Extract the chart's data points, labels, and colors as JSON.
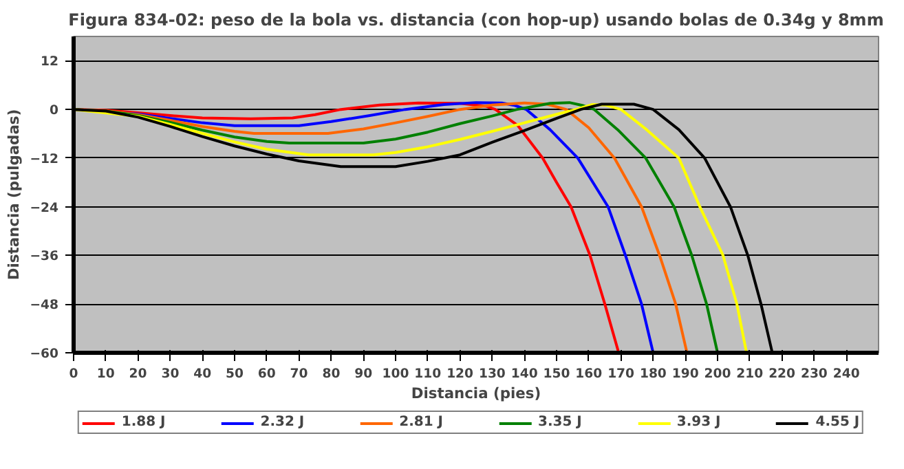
{
  "chart_data": {
    "type": "line",
    "title": "Figura 834-02: peso de la bola vs. distancia (con hop-up) usando bolas de 0.34g y 8mm",
    "xlabel": "Distancia (pies)",
    "ylabel": "Distancia (pulgadas)",
    "xlim": [
      0,
      250
    ],
    "ylim": [
      -60,
      18
    ],
    "xticks": [
      0,
      10,
      20,
      30,
      40,
      50,
      60,
      70,
      80,
      90,
      100,
      110,
      120,
      130,
      140,
      150,
      160,
      170,
      180,
      190,
      200,
      210,
      220,
      230,
      240
    ],
    "yticks": [
      -60,
      -48,
      -36,
      -24,
      -12,
      0,
      12
    ],
    "grid": "y",
    "legend": "bottom",
    "line_style": "solid",
    "marker": "none",
    "series": [
      {
        "name": "1.88 J",
        "color": "#ff0000",
        "x": [
          0,
          10,
          20,
          30,
          40,
          55,
          68,
          75,
          83,
          95,
          107,
          120,
          128,
          131,
          138,
          145.7,
          150,
          154.5,
          160.4,
          165,
          169.3
        ],
        "values": [
          0,
          -0.2,
          -0.8,
          -1.5,
          -2.1,
          -2.3,
          -2.1,
          -1.3,
          0,
          1.1,
          1.6,
          1.5,
          0.8,
          0,
          -4,
          -12,
          -18,
          -24,
          -36,
          -48,
          -60
        ]
      },
      {
        "name": "2.32 J",
        "color": "#0000ff",
        "x": [
          0,
          20,
          30,
          40,
          50,
          70,
          80,
          92,
          103,
          115,
          125,
          133,
          137,
          140.6,
          148,
          156.6,
          166,
          171.4,
          176.4,
          180
        ],
        "values": [
          0,
          -1.1,
          -2.2,
          -3.3,
          -4,
          -4,
          -3,
          -1.5,
          0,
          1.2,
          1.7,
          1.6,
          1,
          0,
          -5,
          -12,
          -24,
          -36,
          -48,
          -60
        ]
      },
      {
        "name": "2.81 J",
        "color": "#ff6600",
        "x": [
          0,
          10,
          20,
          30,
          40,
          50,
          56,
          79,
          90,
          100,
          110,
          120,
          130,
          140,
          147,
          153,
          160,
          168,
          176.4,
          182,
          187,
          190.5
        ],
        "values": [
          0,
          -0.3,
          -1.3,
          -2.7,
          -4.2,
          -5.4,
          -5.9,
          -5.9,
          -4.8,
          -3.3,
          -1.7,
          0,
          1.1,
          1.6,
          1.3,
          0,
          -4.5,
          -12,
          -24,
          -36,
          -48,
          -60
        ]
      },
      {
        "name": "3.35 J",
        "color": "#008000",
        "x": [
          0,
          10,
          20,
          30,
          40,
          50,
          60,
          67,
          90,
          100,
          110,
          120,
          130,
          137.7,
          148,
          154,
          158,
          161.7,
          169,
          177.7,
          186.5,
          192,
          196.6,
          200
        ],
        "values": [
          0,
          -0.4,
          -1.5,
          -3.2,
          -5.1,
          -6.8,
          -7.9,
          -8.3,
          -8.3,
          -7.3,
          -5.6,
          -3.5,
          -1.6,
          0,
          1.5,
          1.7,
          1,
          0,
          -5,
          -12,
          -24,
          -36,
          -48,
          -60
        ]
      },
      {
        "name": "3.93 J",
        "color": "#ffff00",
        "x": [
          0,
          20,
          30,
          40,
          50,
          60,
          73,
          93,
          100,
          110,
          120,
          130,
          140,
          150,
          156,
          161,
          165,
          170,
          178,
          188,
          194.5,
          201.7,
          206,
          209
        ],
        "values": [
          0,
          -1.7,
          -3.7,
          -5.9,
          -8,
          -9.8,
          -11.2,
          -11.2,
          -10.6,
          -9.2,
          -7.4,
          -5.4,
          -3.3,
          -1.2,
          0,
          1.2,
          1.1,
          0,
          -5,
          -12,
          -24,
          -36,
          -48,
          -60
        ]
      },
      {
        "name": "4.55 J",
        "color": "#000000",
        "x": [
          0,
          10,
          20,
          30,
          40,
          50,
          60,
          70,
          83,
          100,
          110,
          120,
          130,
          140,
          150,
          157.5,
          164,
          174,
          180,
          188,
          196,
          204,
          209.4,
          213.5,
          217
        ],
        "values": [
          0,
          -0.4,
          -1.9,
          -4.2,
          -6.7,
          -9,
          -11,
          -12.7,
          -14.1,
          -14.1,
          -12.8,
          -11.2,
          -8.1,
          -5.2,
          -2.2,
          0,
          1.3,
          1.3,
          0,
          -5,
          -12,
          -24,
          -36,
          -48,
          -60
        ]
      }
    ]
  }
}
